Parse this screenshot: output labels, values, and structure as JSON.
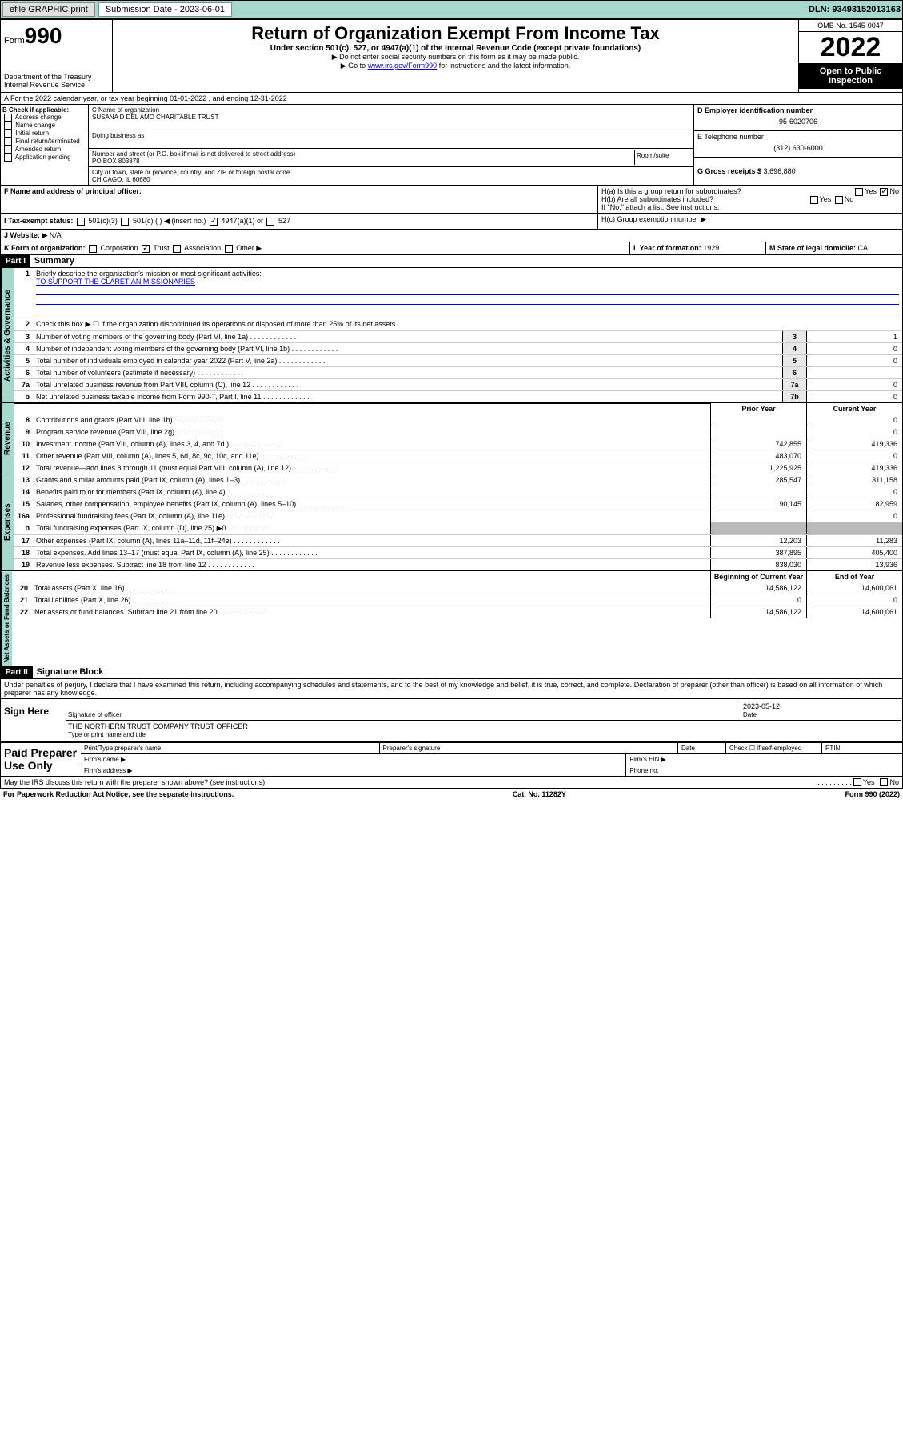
{
  "topbar": {
    "efile": "efile GRAPHIC print",
    "submission_label": "Submission Date - 2023-06-01",
    "dln": "DLN: 93493152013163"
  },
  "header": {
    "form_label": "Form",
    "form_num": "990",
    "dept": "Department of the Treasury",
    "irs": "Internal Revenue Service",
    "title": "Return of Organization Exempt From Income Tax",
    "subtitle": "Under section 501(c), 527, or 4947(a)(1) of the Internal Revenue Code (except private foundations)",
    "note1": "▶ Do not enter social security numbers on this form as it may be made public.",
    "note2_pre": "▶ Go to ",
    "note2_link": "www.irs.gov/Form990",
    "note2_post": " for instructions and the latest information.",
    "omb": "OMB No. 1545-0047",
    "year": "2022",
    "open": "Open to Public Inspection"
  },
  "sectionA": {
    "text": "A For the 2022 calendar year, or tax year beginning 01-01-2022    , and ending 12-31-2022"
  },
  "sectionB": {
    "label": "B Check if applicable:",
    "opts": [
      "Address change",
      "Name change",
      "Initial return",
      "Final return/terminated",
      "Amended return",
      "Application pending"
    ]
  },
  "sectionC": {
    "name_label": "C Name of organization",
    "name": "SUSANA D DEL AMO CHARITABLE TRUST",
    "dba": "Doing business as",
    "addr_label": "Number and street (or P.O. box if mail is not delivered to street address)",
    "room": "Room/suite",
    "addr": "PO BOX 803878",
    "city_label": "City or town, state or province, country, and ZIP or foreign postal code",
    "city": "CHICAGO, IL  60680"
  },
  "sectionD": {
    "label": "D Employer identification number",
    "val": "95-6020706"
  },
  "sectionE": {
    "label": "E Telephone number",
    "val": "(312) 630-6000"
  },
  "sectionG": {
    "label": "G Gross receipts $",
    "val": "3,696,880"
  },
  "sectionF": {
    "label": "F Name and address of principal officer:"
  },
  "sectionH": {
    "ha": "H(a)  Is this a group return for subordinates?",
    "hb": "H(b)  Are all subordinates included?",
    "hb_note": "If \"No,\" attach a list. See instructions.",
    "hc": "H(c)  Group exemption number ▶",
    "yes": "Yes",
    "no": "No"
  },
  "sectionI": {
    "label": "I   Tax-exempt status:",
    "o1": "501(c)(3)",
    "o2": "501(c) (  ) ◀ (insert no.)",
    "o3": "4947(a)(1) or",
    "o4": "527"
  },
  "sectionJ": {
    "label": "J   Website: ▶",
    "val": "N/A"
  },
  "sectionK": {
    "label": "K Form of organization:",
    "o1": "Corporation",
    "o2": "Trust",
    "o3": "Association",
    "o4": "Other ▶"
  },
  "sectionL": {
    "label": "L Year of formation:",
    "val": "1929"
  },
  "sectionM": {
    "label": "M State of legal domicile:",
    "val": "CA"
  },
  "part1": {
    "header": "Part I",
    "title": "Summary",
    "l1": "Briefly describe the organization's mission or most significant activities:",
    "mission": "TO SUPPORT THE CLARETIAN MISSIONARIES",
    "l2": "Check this box ▶ ☐  if the organization discontinued its operations or disposed of more than 25% of its net assets.",
    "rows_gov": [
      {
        "n": "3",
        "t": "Number of voting members of the governing body (Part VI, line 1a)",
        "box": "3",
        "v": "1"
      },
      {
        "n": "4",
        "t": "Number of independent voting members of the governing body (Part VI, line 1b)",
        "box": "4",
        "v": "0"
      },
      {
        "n": "5",
        "t": "Total number of individuals employed in calendar year 2022 (Part V, line 2a)",
        "box": "5",
        "v": "0"
      },
      {
        "n": "6",
        "t": "Total number of volunteers (estimate if necessary)",
        "box": "6",
        "v": ""
      },
      {
        "n": "7a",
        "t": "Total unrelated business revenue from Part VIII, column (C), line 12",
        "box": "7a",
        "v": "0"
      },
      {
        "n": "b",
        "t": "Net unrelated business taxable income from Form 990-T, Part I, line 11",
        "box": "7b",
        "v": "0"
      }
    ],
    "prior": "Prior Year",
    "current": "Current Year",
    "rows_rev": [
      {
        "n": "8",
        "t": "Contributions and grants (Part VIII, line 1h)",
        "p": "",
        "c": "0"
      },
      {
        "n": "9",
        "t": "Program service revenue (Part VIII, line 2g)",
        "p": "",
        "c": "0"
      },
      {
        "n": "10",
        "t": "Investment income (Part VIII, column (A), lines 3, 4, and 7d )",
        "p": "742,855",
        "c": "419,336"
      },
      {
        "n": "11",
        "t": "Other revenue (Part VIII, column (A), lines 5, 6d, 8c, 9c, 10c, and 11e)",
        "p": "483,070",
        "c": "0"
      },
      {
        "n": "12",
        "t": "Total revenue—add lines 8 through 11 (must equal Part VIII, column (A), line 12)",
        "p": "1,225,925",
        "c": "419,336"
      }
    ],
    "rows_exp": [
      {
        "n": "13",
        "t": "Grants and similar amounts paid (Part IX, column (A), lines 1–3)",
        "p": "285,547",
        "c": "311,158"
      },
      {
        "n": "14",
        "t": "Benefits paid to or for members (Part IX, column (A), line 4)",
        "p": "",
        "c": "0"
      },
      {
        "n": "15",
        "t": "Salaries, other compensation, employee benefits (Part IX, column (A), lines 5–10)",
        "p": "90,145",
        "c": "82,959"
      },
      {
        "n": "16a",
        "t": "Professional fundraising fees (Part IX, column (A), line 11e)",
        "p": "",
        "c": "0"
      },
      {
        "n": "b",
        "t": "Total fundraising expenses (Part IX, column (D), line 25) ▶0",
        "p": "gray",
        "c": "gray"
      },
      {
        "n": "17",
        "t": "Other expenses (Part IX, column (A), lines 11a–11d, 11f–24e)",
        "p": "12,203",
        "c": "11,283"
      },
      {
        "n": "18",
        "t": "Total expenses. Add lines 13–17 (must equal Part IX, column (A), line 25)",
        "p": "387,895",
        "c": "405,400"
      },
      {
        "n": "19",
        "t": "Revenue less expenses. Subtract line 18 from line 12",
        "p": "838,030",
        "c": "13,936"
      }
    ],
    "beg": "Beginning of Current Year",
    "end": "End of Year",
    "rows_net": [
      {
        "n": "20",
        "t": "Total assets (Part X, line 16)",
        "p": "14,586,122",
        "c": "14,600,061"
      },
      {
        "n": "21",
        "t": "Total liabilities (Part X, line 26)",
        "p": "0",
        "c": "0"
      },
      {
        "n": "22",
        "t": "Net assets or fund balances. Subtract line 21 from line 20",
        "p": "14,586,122",
        "c": "14,600,061"
      }
    ]
  },
  "labels": {
    "gov": "Activities & Governance",
    "rev": "Revenue",
    "exp": "Expenses",
    "net": "Net Assets or Fund Balances"
  },
  "part2": {
    "header": "Part II",
    "title": "Signature Block",
    "penalty": "Under penalties of perjury, I declare that I have examined this return, including accompanying schedules and statements, and to the best of my knowledge and belief, it is true, correct, and complete. Declaration of preparer (other than officer) is based on all information of which preparer has any knowledge.",
    "sign_here": "Sign Here",
    "sig_officer": "Signature of officer",
    "date": "Date",
    "date_val": "2023-05-12",
    "officer_name": "THE NORTHERN TRUST COMPANY  TRUST OFFICER",
    "type_name": "Type or print name and title",
    "paid": "Paid Preparer Use Only",
    "print_name": "Print/Type preparer's name",
    "prep_sig": "Preparer's signature",
    "check_self": "Check ☐ if self-employed",
    "ptin": "PTIN",
    "firm_name": "Firm's name  ▶",
    "firm_ein": "Firm's EIN ▶",
    "firm_addr": "Firm's address ▶",
    "phone": "Phone no."
  },
  "footer": {
    "discuss": "May the IRS discuss this return with the preparer shown above? (see instructions)",
    "paperwork": "For Paperwork Reduction Act Notice, see the separate instructions.",
    "cat": "Cat. No. 11282Y",
    "form": "Form 990 (2022)"
  }
}
